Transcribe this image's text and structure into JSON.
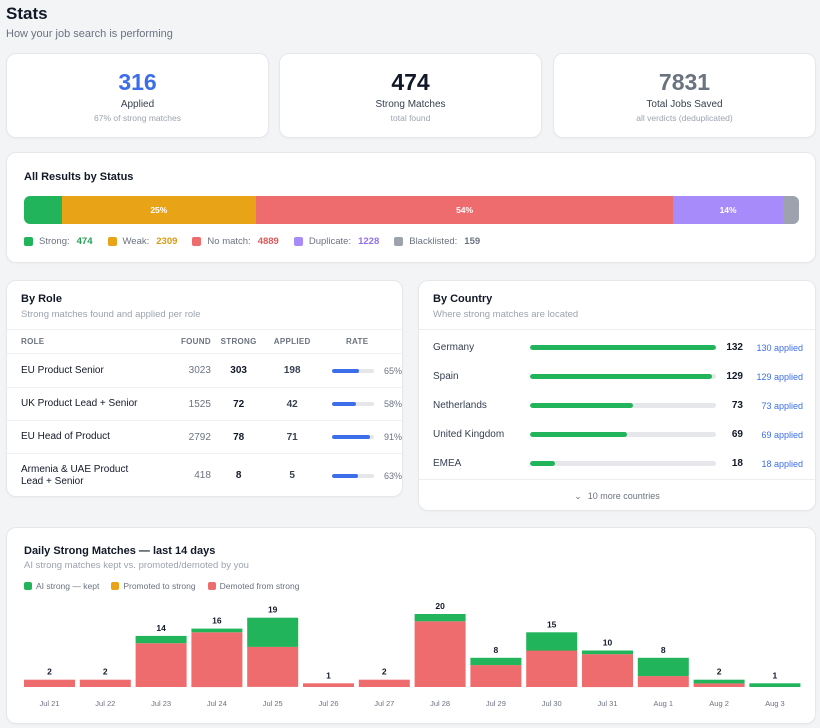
{
  "page": {
    "title": "Stats",
    "subtitle": "How your job search is performing"
  },
  "kpis": [
    {
      "value": "316",
      "label": "Applied",
      "sub": "67% of strong matches",
      "color": "#3b6ee8"
    },
    {
      "value": "474",
      "label": "Strong Matches",
      "sub": "total found",
      "color": "#111827"
    },
    {
      "value": "7831",
      "label": "Total Jobs Saved",
      "sub": "all verdicts (deduplicated)",
      "color": "#6b7280"
    }
  ],
  "status": {
    "title": "All Results by Status",
    "segments": [
      {
        "name": "Strong",
        "count": "474",
        "share": 0.049,
        "pct_label": "",
        "color": "#22b45a",
        "text_color": "#22a055"
      },
      {
        "name": "Weak",
        "count": "2309",
        "share": 0.25,
        "pct_label": "25%",
        "color": "#e8a317",
        "text_color": "#d99a16"
      },
      {
        "name": "No match",
        "count": "4889",
        "share": 0.539,
        "pct_label": "54%",
        "color": "#ee6b6e",
        "text_color": "#e0585c"
      },
      {
        "name": "Duplicate",
        "count": "1228",
        "share": 0.141,
        "pct_label": "14%",
        "color": "#a78bfa",
        "text_color": "#9270f0"
      },
      {
        "name": "Blacklisted",
        "count": "159",
        "share": 0.021,
        "pct_label": "",
        "color": "#9ca3af",
        "text_color": "#6b7280"
      }
    ]
  },
  "by_role": {
    "title": "By Role",
    "subtitle": "Strong matches found and applied per role",
    "headers": {
      "role": "ROLE",
      "found": "FOUND",
      "strong": "STRONG",
      "applied": "APPLIED",
      "rate": "RATE"
    },
    "rows": [
      {
        "role": "EU Product Senior",
        "found": "3023",
        "strong": "303",
        "applied": "198",
        "rate": 0.65,
        "rate_label": "65%"
      },
      {
        "role": "UK Product Lead + Senior",
        "found": "1525",
        "strong": "72",
        "applied": "42",
        "rate": 0.58,
        "rate_label": "58%"
      },
      {
        "role": "EU Head of Product",
        "found": "2792",
        "strong": "78",
        "applied": "71",
        "rate": 0.91,
        "rate_label": "91%"
      },
      {
        "role": "Armenia & UAE Product Lead + Senior",
        "found": "418",
        "strong": "8",
        "applied": "5",
        "rate": 0.63,
        "rate_label": "63%"
      }
    ]
  },
  "by_country": {
    "title": "By Country",
    "subtitle": "Where strong matches are located",
    "rows": [
      {
        "name": "Germany",
        "count": "132",
        "share": 1.0,
        "applied": "130 applied"
      },
      {
        "name": "Spain",
        "count": "129",
        "share": 0.977,
        "applied": "129 applied"
      },
      {
        "name": "Netherlands",
        "count": "73",
        "share": 0.553,
        "applied": "73 applied"
      },
      {
        "name": "United Kingdom",
        "count": "69",
        "share": 0.523,
        "applied": "69 applied"
      },
      {
        "name": "EMEA",
        "count": "18",
        "share": 0.136,
        "applied": "18 applied"
      }
    ],
    "more": "10 more countries"
  },
  "daily": {
    "title": "Daily Strong Matches — last 14 days",
    "subtitle": "AI strong matches kept vs. promoted/demoted by you",
    "legend": [
      {
        "name": "AI strong — kept",
        "color": "#22b45a"
      },
      {
        "name": "Promoted to strong",
        "color": "#e8a317"
      },
      {
        "name": "Demoted from strong",
        "color": "#ee6b6e"
      }
    ]
  },
  "chart_data": {
    "type": "bar",
    "title": "Daily Strong Matches — last 14 days",
    "categories": [
      "Jul 21",
      "Jul 22",
      "Jul 23",
      "Jul 24",
      "Jul 25",
      "Jul 26",
      "Jul 27",
      "Jul 28",
      "Jul 29",
      "Jul 30",
      "Jul 31",
      "Aug 1",
      "Aug 2",
      "Aug 3"
    ],
    "totals": [
      2,
      2,
      14,
      16,
      19,
      1,
      2,
      20,
      8,
      15,
      10,
      8,
      2,
      1
    ],
    "series": [
      {
        "name": "Demoted from strong",
        "values": [
          2,
          2,
          12,
          15,
          11,
          1,
          2,
          18,
          6,
          10,
          9,
          3,
          1,
          0
        ]
      },
      {
        "name": "AI strong — kept",
        "values": [
          0,
          0,
          2,
          1,
          8,
          0,
          0,
          2,
          2,
          5,
          1,
          5,
          1,
          1
        ]
      },
      {
        "name": "Promoted to strong",
        "values": [
          0,
          0,
          0,
          0,
          0,
          0,
          0,
          0,
          0,
          0,
          0,
          0,
          0,
          0
        ]
      }
    ],
    "stacked": true,
    "ylim": [
      0,
      20
    ],
    "legend": "top-left",
    "grid": false
  }
}
